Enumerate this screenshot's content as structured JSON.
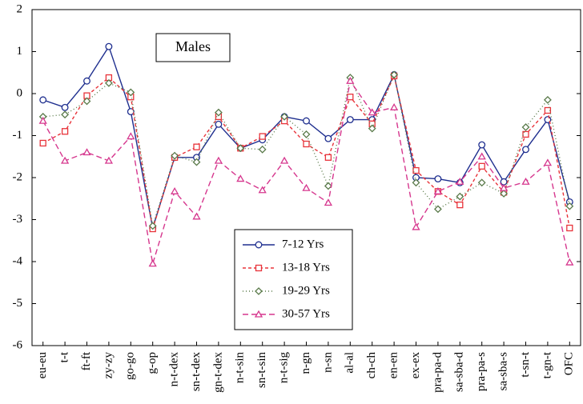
{
  "chart_data": {
    "type": "line",
    "title": "Males",
    "categories": [
      "eu-eu",
      "t-t",
      "ft-ft",
      "zy-zy",
      "go-go",
      "g-op",
      "n-t-dex",
      "sn-t-dex",
      "gn-t-dex",
      "n-t-sin",
      "sn-t-sin",
      "n-t-sig",
      "n-gn",
      "n-sn",
      "al-al",
      "ch-ch",
      "en-en",
      "ex-ex",
      "pra-pa-d",
      "sa-sba-d",
      "pra-pa-s",
      "sa-sba-s",
      "t-sn-t",
      "t-gn-t",
      "OFC"
    ],
    "series": [
      {
        "name": "7-12 Yrs",
        "color": "#1f2f8f",
        "marker": "circle",
        "dash": "none",
        "values": [
          -0.15,
          -0.33,
          0.3,
          1.12,
          -0.43,
          -3.2,
          -1.52,
          -1.52,
          -0.73,
          -1.3,
          -1.1,
          -0.55,
          -0.65,
          -1.07,
          -0.62,
          -0.62,
          0.45,
          -2.0,
          -2.03,
          -2.12,
          -1.22,
          -2.1,
          -1.33,
          -0.62,
          -2.58
        ]
      },
      {
        "name": "13-18 Yrs",
        "color": "#e8333a",
        "marker": "square",
        "dash": "4 3",
        "values": [
          -1.18,
          -0.9,
          -0.05,
          0.38,
          -0.08,
          -3.22,
          -1.52,
          -1.27,
          -0.55,
          -1.3,
          -1.02,
          -0.65,
          -1.2,
          -1.52,
          -0.08,
          -0.72,
          0.42,
          -1.83,
          -2.33,
          -2.65,
          -1.73,
          -2.35,
          -0.97,
          -0.4,
          -3.2
        ]
      },
      {
        "name": "19-29 Yrs",
        "color": "#5a7a4a",
        "marker": "diamond",
        "dash": "1 3",
        "values": [
          -0.55,
          -0.5,
          -0.18,
          0.25,
          0.03,
          -3.15,
          -1.48,
          -1.63,
          -0.45,
          -1.3,
          -1.33,
          -0.55,
          -0.97,
          -2.2,
          0.38,
          -0.83,
          0.45,
          -2.12,
          -2.75,
          -2.45,
          -2.12,
          -2.38,
          -0.8,
          -0.15,
          -2.68
        ]
      },
      {
        "name": "30-57 Yrs",
        "color": "#d6378e",
        "marker": "triangle",
        "dash": "7 4",
        "values": [
          -0.65,
          -1.6,
          -1.4,
          -1.6,
          -1.02,
          -4.05,
          -2.33,
          -2.93,
          -1.6,
          -2.03,
          -2.3,
          -1.6,
          -2.25,
          -2.6,
          0.3,
          -0.45,
          -0.33,
          -3.18,
          -2.33,
          -2.1,
          -1.5,
          -2.25,
          -2.1,
          -1.65,
          -4.02
        ]
      }
    ],
    "ylim": [
      -6,
      2
    ],
    "yticks": [
      -6,
      -5,
      -4,
      -3,
      -2,
      -1,
      0,
      1,
      2
    ],
    "grid": false
  }
}
